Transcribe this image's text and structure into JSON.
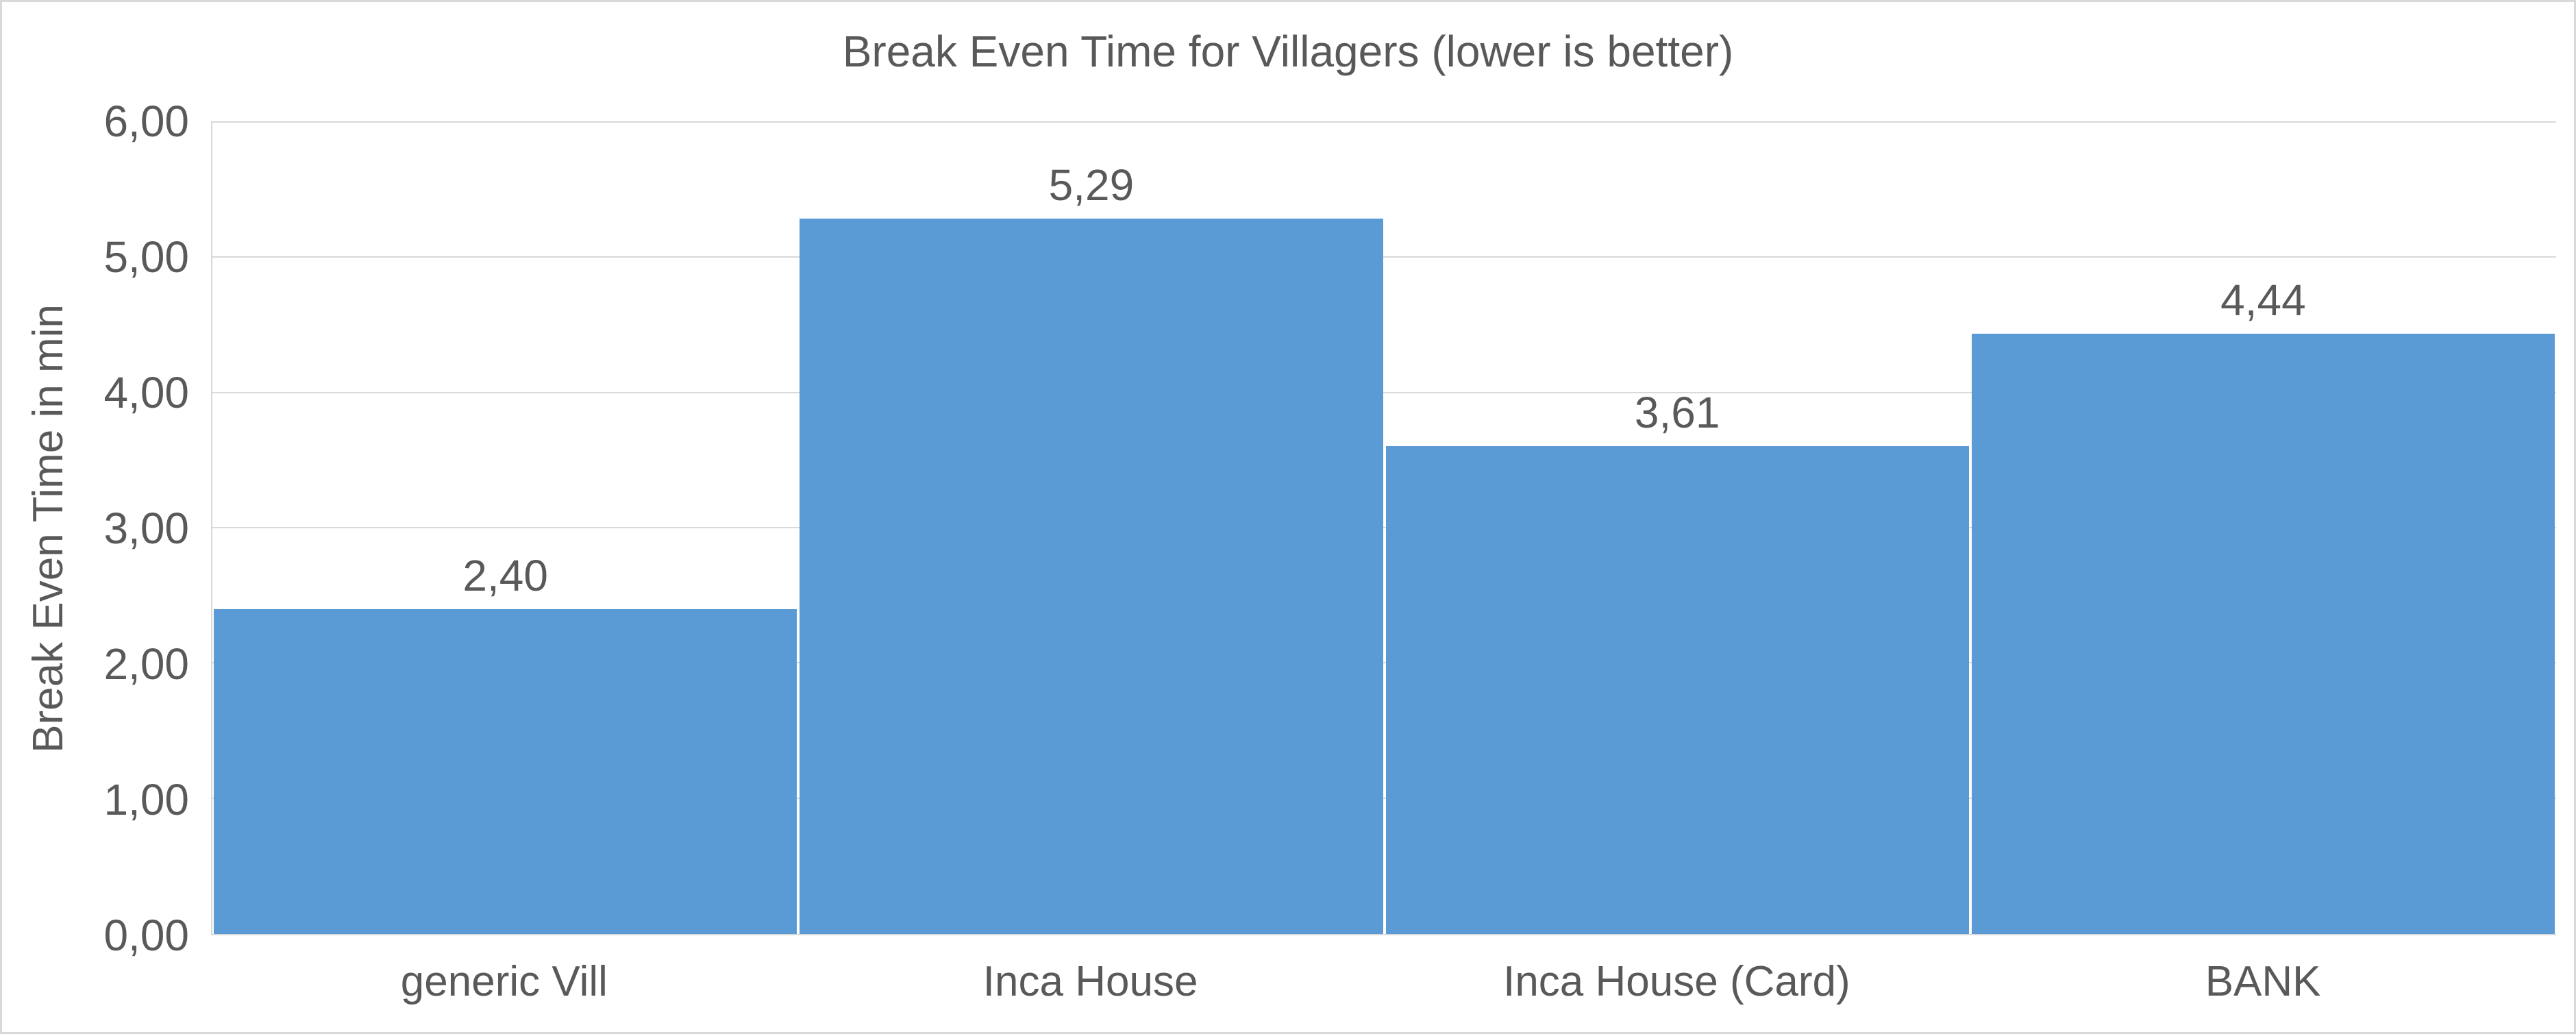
{
  "chart_data": {
    "type": "bar",
    "title": "Break Even Time for Villagers (lower is better)",
    "ylabel": "Break Even Time in min",
    "xlabel": "",
    "categories": [
      "generic Vill",
      "Inca House",
      "Inca House (Card)",
      "BANK"
    ],
    "values": [
      2.4,
      5.29,
      3.61,
      4.44
    ],
    "value_labels": [
      "2,40",
      "5,29",
      "3,61",
      "4,44"
    ],
    "ylim": [
      0,
      6
    ],
    "ytick_step": 1,
    "ytick_labels": [
      "0,00",
      "1,00",
      "2,00",
      "3,00",
      "4,00",
      "5,00",
      "6,00"
    ],
    "grid": "horizontal",
    "legend": "none",
    "colors": {
      "bar": "#5b9bd5",
      "text": "#595959",
      "gridline": "#d9d9d9",
      "background": "#ffffff"
    }
  }
}
